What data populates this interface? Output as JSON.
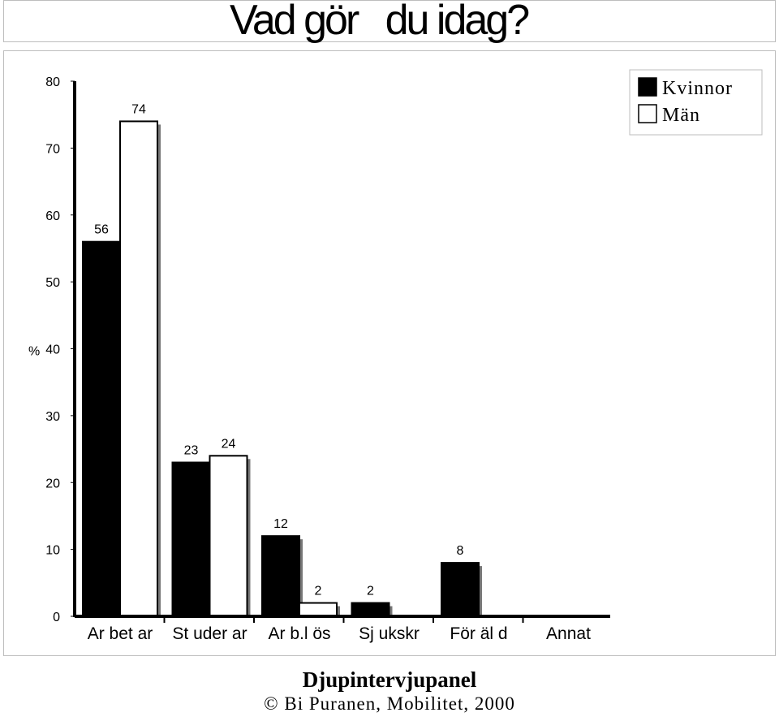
{
  "page": {
    "title": "Vad gör   du idag?",
    "footer_title": "Djupintervjupanel",
    "footer_credit": "©  Bi Puranen, Mobilitet, 2000"
  },
  "chart_data": {
    "type": "bar",
    "title": "Vad gör   du idag?",
    "ylabel": "%",
    "xlabel": "",
    "ylim": [
      0,
      80
    ],
    "yticks": [
      0,
      10,
      20,
      30,
      40,
      50,
      60,
      70,
      80
    ],
    "categories": [
      "Ar bet ar",
      "St uder ar",
      "Ar b.l ös",
      "Sj ukskr",
      "För äl d",
      "Annat"
    ],
    "series": [
      {
        "name": "Kvinnor",
        "color": "#000000",
        "values": [
          56,
          23,
          12,
          2,
          8,
          0
        ],
        "labels": [
          "56",
          "23",
          "12",
          "2",
          "8",
          ""
        ]
      },
      {
        "name": "Män",
        "color": "#ffffff",
        "values": [
          74,
          24,
          2,
          0,
          0,
          0
        ],
        "labels": [
          "74",
          "24",
          "2",
          "",
          "",
          ""
        ]
      }
    ],
    "legend": {
      "position": "top-right"
    }
  }
}
